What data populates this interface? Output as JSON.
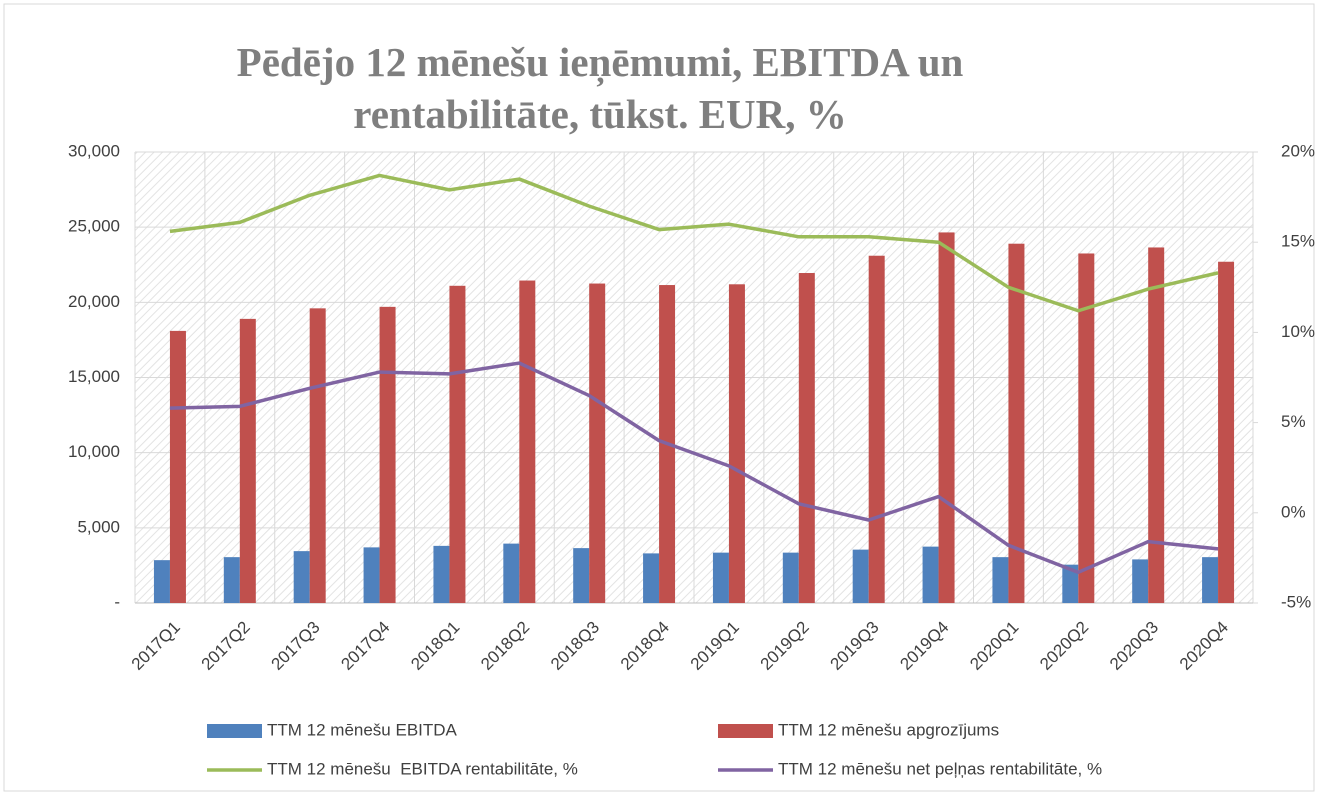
{
  "chart_data": {
    "type": "bar_line",
    "title": "Pēdējo 12 mēnešu ieņēmumi, EBITDA un rentabilitāte, tūkst. EUR, %",
    "categories": [
      "2017Q1",
      "2017Q2",
      "2017Q3",
      "2017Q4",
      "2018Q1",
      "2018Q2",
      "2018Q3",
      "2018Q4",
      "2019Q1",
      "2019Q2",
      "2019Q3",
      "2019Q4",
      "2020Q1",
      "2020Q2",
      "2020Q3",
      "2020Q4"
    ],
    "series": [
      {
        "name": "TTM 12 mēnešu EBITDA",
        "type": "bar",
        "color": "#4f81bd",
        "values": [
          2850,
          3050,
          3450,
          3700,
          3800,
          3950,
          3650,
          3300,
          3350,
          3350,
          3550,
          3750,
          3050,
          2550,
          2900,
          3050
        ]
      },
      {
        "name": "TTM 12 mēnešu apgrozījums",
        "type": "bar",
        "color": "#c0504d",
        "values": [
          18100,
          18900,
          19600,
          19700,
          21100,
          21450,
          21250,
          21150,
          21200,
          21950,
          23100,
          24650,
          23900,
          23250,
          23650,
          22700
        ]
      },
      {
        "name": "TTM 12 mēnešu  EBITDA rentabilitāte, %",
        "type": "line",
        "axis": "y2",
        "color": "#9bbb59",
        "values": [
          15.6,
          16.1,
          17.6,
          18.7,
          17.9,
          18.5,
          17.0,
          15.7,
          16.0,
          15.3,
          15.3,
          15.0,
          12.5,
          11.2,
          12.4,
          13.3
        ]
      },
      {
        "name": "TTM 12 mēnešu net peļņas rentabilitāte, %",
        "type": "line",
        "axis": "y2",
        "color": "#8064a2",
        "values": [
          5.8,
          5.9,
          6.9,
          7.8,
          7.7,
          8.3,
          6.5,
          4.0,
          2.6,
          0.5,
          -0.4,
          0.9,
          -1.8,
          -3.3,
          -1.6,
          -2.0
        ]
      }
    ],
    "ylim": [
      0,
      30000
    ],
    "yticks": [
      {
        "value": 0,
        "label": "-"
      },
      {
        "value": 5000,
        "label": "5,000"
      },
      {
        "value": 10000,
        "label": "10,000"
      },
      {
        "value": 15000,
        "label": "15,000"
      },
      {
        "value": 20000,
        "label": "20,000"
      },
      {
        "value": 25000,
        "label": "25,000"
      },
      {
        "value": 30000,
        "label": "30,000"
      }
    ],
    "y2lim": [
      -5,
      20
    ],
    "y2ticks": [
      {
        "value": -5,
        "label": "-5%"
      },
      {
        "value": 0,
        "label": "0%"
      },
      {
        "value": 5,
        "label": "5%"
      },
      {
        "value": 10,
        "label": "10%"
      },
      {
        "value": 15,
        "label": "15%"
      },
      {
        "value": 20,
        "label": "20%"
      }
    ],
    "grid": true,
    "legend": "bottom"
  }
}
